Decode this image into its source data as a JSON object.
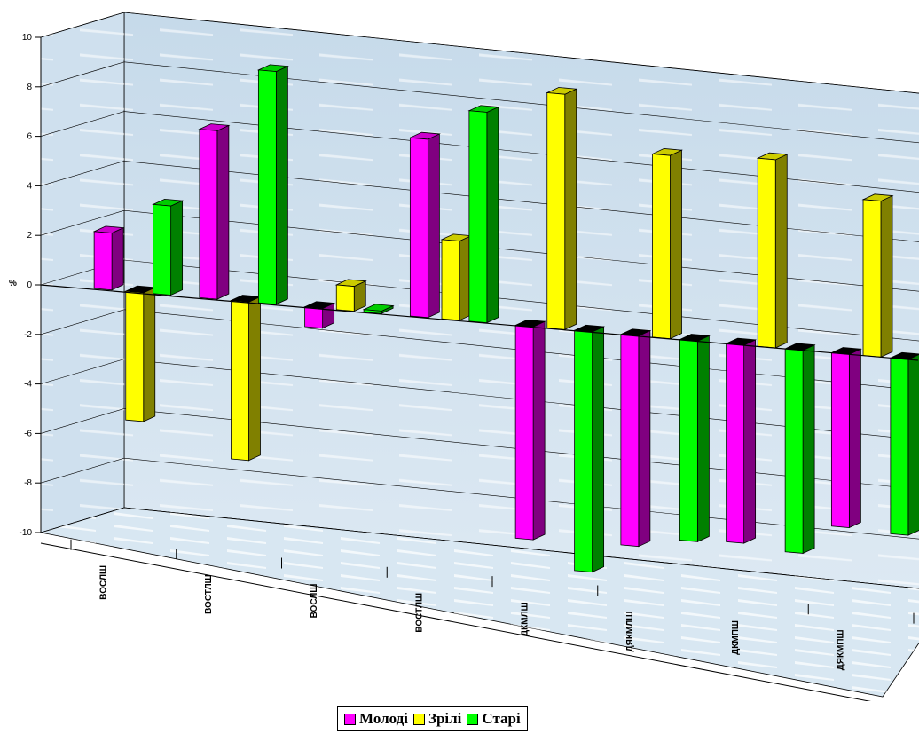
{
  "chart_data": {
    "type": "bar",
    "variant": "3d-column",
    "ylabel": "%",
    "ylim": [
      -10,
      10
    ],
    "ytick_step": 2,
    "grid": true,
    "legend_position": "bottom",
    "categories": [
      "ВОСЛШ",
      "ВОСТЛШ",
      "ВОСЛШ",
      "ВОСТЛШ",
      "ДКМЛШ",
      "ДЯКМЛШ",
      "ДКМПШ",
      "ДЯКМПШ"
    ],
    "series": [
      {
        "name": "Молоді",
        "color": "#ff00ff",
        "values": [
          2.3,
          6.8,
          -0.8,
          7.2,
          -8.6,
          -8.5,
          -8.0,
          -7.0
        ]
      },
      {
        "name": "Зрілі",
        "color": "#ffff00",
        "values": [
          -5.2,
          -6.4,
          1.0,
          3.2,
          9.5,
          7.4,
          7.6,
          6.3
        ]
      },
      {
        "name": "Старі",
        "color": "#00ff00",
        "values": [
          3.6,
          9.4,
          0.1,
          8.5,
          -9.7,
          -8.1,
          -8.2,
          -7.1
        ]
      }
    ]
  }
}
